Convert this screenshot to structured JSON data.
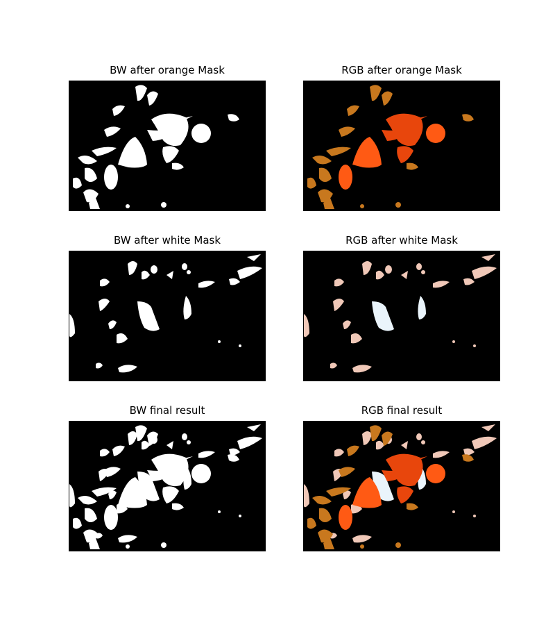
{
  "figure": {
    "panels": [
      {
        "id": "bw-orange",
        "title": "BW after orange Mask",
        "mode": "bw",
        "mask": "orange"
      },
      {
        "id": "rgb-orange",
        "title": "RGB after orange Mask",
        "mode": "rgb",
        "mask": "orange"
      },
      {
        "id": "bw-white",
        "title": "BW after white Mask",
        "mode": "bw",
        "mask": "white"
      },
      {
        "id": "rgb-white",
        "title": "RGB after white Mask",
        "mode": "rgb",
        "mask": "white"
      },
      {
        "id": "bw-final",
        "title": "BW final result",
        "mode": "bw",
        "mask": "final"
      },
      {
        "id": "rgb-final",
        "title": "RGB final result",
        "mode": "rgb",
        "mask": "final"
      }
    ],
    "colors": {
      "background": "#000000",
      "bw_fill": "#ffffff",
      "orange_main": "#ff5a14",
      "orange_dark": "#e8460c",
      "orange_dull": "#c8781e",
      "white_tint": "#eaf4fb",
      "pink_tint": "#f0c8b8"
    }
  }
}
